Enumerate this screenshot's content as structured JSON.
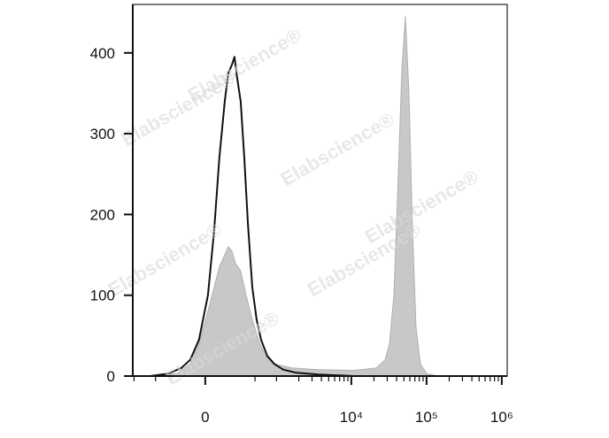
{
  "chart_data": {
    "type": "histogram-overlay",
    "watermark": "Elabscience®",
    "xscale": "asinh",
    "asinh_cofactor": 229,
    "xlim": [
      -1040,
      1180000
    ],
    "xticks": [
      {
        "value": 0,
        "label": "0"
      },
      {
        "value": 10000,
        "label": "10⁴"
      },
      {
        "value": 100000,
        "label": "10⁵"
      },
      {
        "value": 1000000,
        "label": "10⁶"
      }
    ],
    "xminorticks": [
      -1000,
      -500,
      500,
      1000,
      2000,
      3000,
      4000,
      5000,
      6000,
      7000,
      8000,
      9000,
      20000,
      30000,
      40000,
      50000,
      60000,
      70000,
      80000,
      90000,
      200000,
      300000,
      400000,
      500000,
      600000,
      700000,
      800000,
      900000
    ],
    "ylim": [
      0,
      460
    ],
    "yticks": [
      0,
      100,
      200,
      300,
      400
    ],
    "series": [
      {
        "style": "area",
        "color": "#c8c8c8",
        "x": [
          -592,
          -225,
          -109,
          -44,
          19,
          63,
          102,
          145,
          175,
          207,
          242,
          300,
          366,
          455,
          559,
          705,
          934,
          1624,
          3673,
          10855,
          21390,
          28050,
          32130,
          36780,
          42140,
          46950,
          52350,
          58350,
          65010,
          72500,
          82990,
          100370,
          142670
        ],
        "values": [
          0,
          3,
          15,
          40,
          80,
          110,
          135,
          150,
          160,
          155,
          140,
          130,
          100,
          70,
          45,
          25,
          15,
          10,
          8,
          7,
          10,
          20,
          40,
          100,
          250,
          380,
          445,
          350,
          180,
          60,
          15,
          3,
          0
        ]
      },
      {
        "style": "line",
        "color": "#111111",
        "x": [
          -592,
          -322,
          -183,
          -109,
          -44,
          19,
          63,
          102,
          145,
          175,
          207,
          233,
          260,
          300,
          344,
          391,
          455,
          528,
          610,
          745,
          934,
          1232,
          1860,
          3673,
          10855
        ],
        "values": [
          0,
          3,
          10,
          20,
          45,
          100,
          180,
          270,
          340,
          375,
          385,
          395,
          370,
          340,
          270,
          190,
          110,
          70,
          45,
          25,
          15,
          8,
          4,
          2,
          0
        ]
      }
    ]
  }
}
